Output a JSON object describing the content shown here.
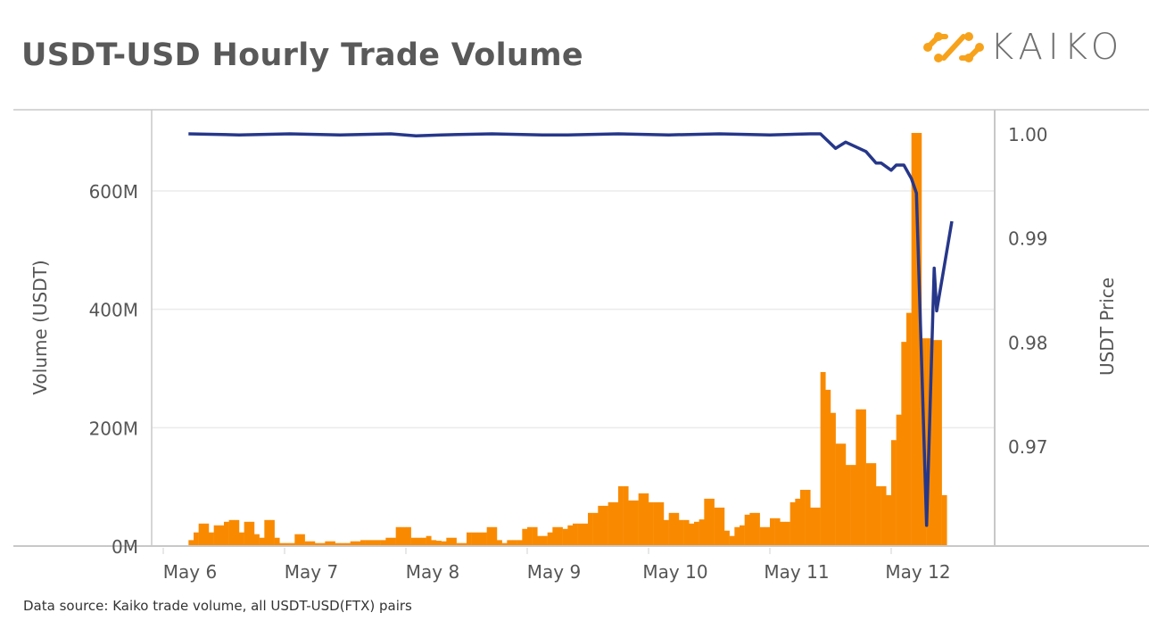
{
  "chart_data": {
    "type": "bar+line",
    "title": "USDT-USD Hourly Trade Volume",
    "brand": "KAIKO",
    "source_note": "Data source: Kaiko trade volume, all USDT-USD(FTX) pairs",
    "xlabel": "",
    "x_ticks": [
      "May 6",
      "May 7",
      "May 8",
      "May 9",
      "May 10",
      "May 11",
      "May 12"
    ],
    "x_unit": "hours since May 6 00:00",
    "y_left": {
      "label": "Volume (USDT)",
      "ticks": [
        "0M",
        "200M",
        "400M",
        "600M"
      ],
      "tick_values": [
        0,
        200,
        400,
        600
      ],
      "range": [
        0,
        720
      ]
    },
    "y_right": {
      "label": "USDT Price",
      "ticks": [
        "0.97",
        "0.98",
        "0.99",
        "1.00"
      ],
      "tick_values": [
        0.97,
        0.98,
        0.99,
        1.0
      ]
    },
    "grid": true,
    "colors": {
      "volume": "#F98A00",
      "price": "#26378A",
      "grid": "#EBEBEB",
      "axis": "#C8C8C8",
      "text": "#555555",
      "logo": "#F7A21B"
    },
    "series": [
      {
        "name": "Hourly volume (M USDT)",
        "type": "bar",
        "start_hour": 5,
        "interval_hours": 1,
        "values": [
          10,
          23,
          38,
          38,
          23,
          35,
          35,
          41,
          44,
          44,
          23,
          41,
          41,
          20,
          14,
          44,
          44,
          14,
          5,
          5,
          5,
          20,
          20,
          8,
          8,
          5,
          5,
          8,
          8,
          5,
          5,
          5,
          8,
          8,
          10,
          10,
          10,
          10,
          10,
          14,
          14,
          32,
          32,
          32,
          14,
          14,
          14,
          17,
          10,
          9,
          8,
          14,
          14,
          5,
          5,
          23,
          23,
          23,
          23,
          32,
          32,
          10,
          5,
          10,
          10,
          10,
          29,
          32,
          32,
          17,
          17,
          23,
          32,
          32,
          29,
          35,
          38,
          38,
          38,
          56,
          56,
          68,
          68,
          74,
          74,
          101,
          101,
          77,
          77,
          89,
          89,
          74,
          74,
          74,
          44,
          56,
          56,
          44,
          44,
          38,
          41,
          45,
          80,
          80,
          65,
          65,
          26,
          17,
          32,
          35,
          53,
          56,
          56,
          32,
          32,
          47,
          47,
          41,
          41,
          74,
          80,
          95,
          95,
          65,
          65,
          294,
          264,
          225,
          173,
          173,
          137,
          137,
          231,
          231,
          140,
          140,
          101,
          101,
          86,
          179,
          222,
          345,
          394,
          698,
          698,
          351,
          351,
          348,
          348,
          86
        ]
      },
      {
        "name": "USDT Price",
        "type": "line",
        "points": [
          [
            5,
            1.0
          ],
          [
            15,
            0.9999
          ],
          [
            25,
            1.0
          ],
          [
            35,
            0.9999
          ],
          [
            45,
            1.0
          ],
          [
            50,
            0.9998
          ],
          [
            55,
            0.9999
          ],
          [
            65,
            1.0
          ],
          [
            75,
            0.9999
          ],
          [
            80,
            0.9999
          ],
          [
            90,
            1.0
          ],
          [
            100,
            0.9999
          ],
          [
            110,
            1.0
          ],
          [
            120,
            0.9999
          ],
          [
            128,
            1.0
          ],
          [
            130,
            1.0
          ],
          [
            133,
            0.9986
          ],
          [
            135,
            0.9992
          ],
          [
            139,
            0.9983
          ],
          [
            141,
            0.9972
          ],
          [
            142,
            0.9972
          ],
          [
            144,
            0.9965
          ],
          [
            145,
            0.997
          ],
          [
            146.5,
            0.997
          ],
          [
            148,
            0.9957
          ],
          [
            149,
            0.9943
          ],
          [
            151,
            0.9624
          ],
          [
            152.5,
            0.9871
          ],
          [
            153,
            0.983
          ],
          [
            156,
            0.9916
          ]
        ]
      }
    ]
  }
}
